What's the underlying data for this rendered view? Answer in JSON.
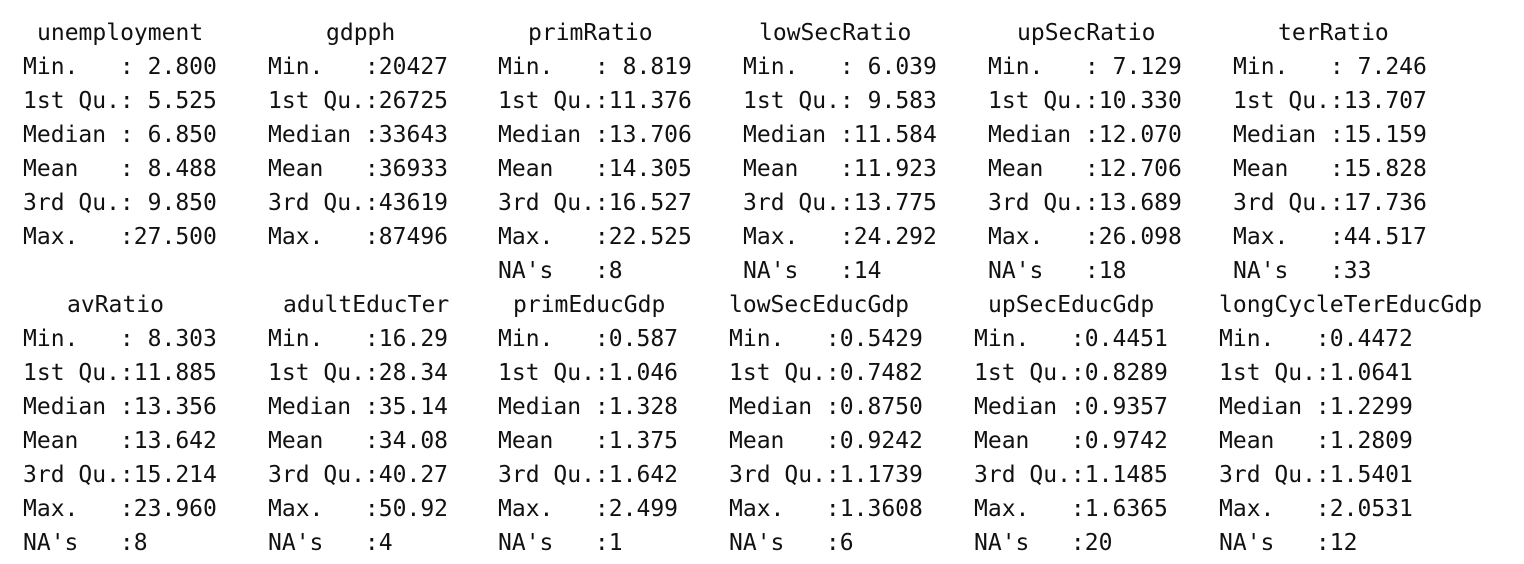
{
  "blocks": [
    {
      "columns": [
        {
          "header": "unemployment",
          "lines": [
            "Min.   : 2.800",
            "1st Qu.: 5.525",
            "Median : 6.850",
            "Mean   : 8.488",
            "3rd Qu.: 9.850",
            "Max.   :27.500",
            ""
          ]
        },
        {
          "header": "gdpph",
          "lines": [
            "Min.   :20427",
            "1st Qu.:26725",
            "Median :33643",
            "Mean   :36933",
            "3rd Qu.:43619",
            "Max.   :87496",
            ""
          ]
        },
        {
          "header": "primRatio",
          "lines": [
            "Min.   : 8.819",
            "1st Qu.:11.376",
            "Median :13.706",
            "Mean   :14.305",
            "3rd Qu.:16.527",
            "Max.   :22.525",
            "NA's   :8"
          ]
        },
        {
          "header": "lowSecRatio",
          "lines": [
            "Min.   : 6.039",
            "1st Qu.: 9.583",
            "Median :11.584",
            "Mean   :11.923",
            "3rd Qu.:13.775",
            "Max.   :24.292",
            "NA's   :14"
          ]
        },
        {
          "header": "upSecRatio",
          "lines": [
            "Min.   : 7.129",
            "1st Qu.:10.330",
            "Median :12.070",
            "Mean   :12.706",
            "3rd Qu.:13.689",
            "Max.   :26.098",
            "NA's   :18"
          ]
        },
        {
          "header": "terRatio",
          "lines": [
            "Min.   : 7.246",
            "1st Qu.:13.707",
            "Median :15.159",
            "Mean   :15.828",
            "3rd Qu.:17.736",
            "Max.   :44.517",
            "NA's   :33"
          ]
        }
      ]
    },
    {
      "columns": [
        {
          "header": "avRatio",
          "lines": [
            "Min.   : 8.303",
            "1st Qu.:11.885",
            "Median :13.356",
            "Mean   :13.642",
            "3rd Qu.:15.214",
            "Max.   :23.960",
            "NA's   :8"
          ]
        },
        {
          "header": "adultEducTer",
          "lines": [
            "Min.   :16.29",
            "1st Qu.:28.34",
            "Median :35.14",
            "Mean   :34.08",
            "3rd Qu.:40.27",
            "Max.   :50.92",
            "NA's   :4"
          ]
        },
        {
          "header": "primEducGdp",
          "lines": [
            "Min.   :0.587",
            "1st Qu.:1.046",
            "Median :1.328",
            "Mean   :1.375",
            "3rd Qu.:1.642",
            "Max.   :2.499",
            "NA's   :1"
          ]
        },
        {
          "header": "lowSecEducGdp",
          "lines": [
            "Min.   :0.5429",
            "1st Qu.:0.7482",
            "Median :0.8750",
            "Mean   :0.9242",
            "3rd Qu.:1.1739",
            "Max.   :1.3608",
            "NA's   :6"
          ]
        },
        {
          "header": "upSecEducGdp",
          "lines": [
            "Min.   :0.4451",
            "1st Qu.:0.8289",
            "Median :0.9357",
            "Mean   :0.9742",
            "3rd Qu.:1.1485",
            "Max.   :1.6365",
            "NA's   :20"
          ]
        },
        {
          "header": "longCycleTerEducGdp",
          "lines": [
            "Min.   :0.4472",
            "1st Qu.:1.0641",
            "Median :1.2299",
            "Mean   :1.2809",
            "3rd Qu.:1.5401",
            "Max.   :2.0531",
            "NA's   :12"
          ]
        }
      ]
    }
  ]
}
